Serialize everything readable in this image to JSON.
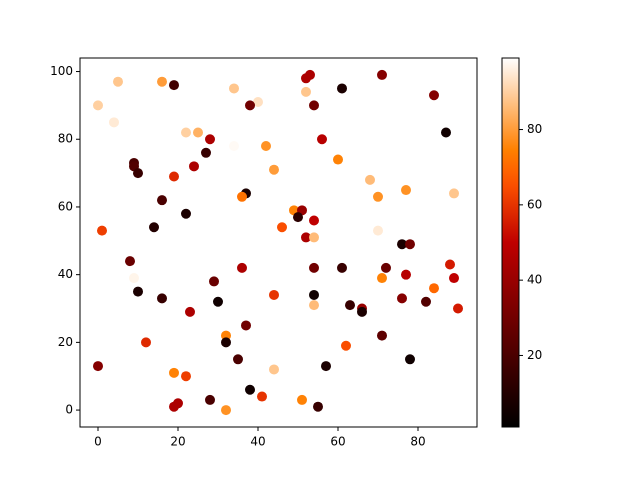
{
  "chart_data": {
    "type": "scatter",
    "colormap": "gist_heat",
    "x": [
      0,
      0,
      4,
      5,
      1,
      16,
      19,
      22,
      25,
      34,
      40,
      38,
      52,
      53,
      52,
      54,
      61,
      71,
      84,
      87,
      28,
      27,
      24,
      19,
      9,
      9,
      10,
      16,
      14,
      22,
      42,
      34,
      44,
      37,
      36,
      56,
      60,
      68,
      70,
      77,
      89,
      49,
      51,
      50,
      54,
      46,
      52,
      54,
      70,
      76,
      78,
      8,
      9,
      10,
      16,
      36,
      29,
      30,
      44,
      54,
      54,
      54,
      61,
      63,
      66,
      66,
      72,
      77,
      76,
      82,
      88,
      89,
      90,
      84,
      71,
      23,
      37,
      32,
      32,
      35,
      12,
      19,
      22,
      44,
      57,
      62,
      71,
      78,
      38,
      41,
      20,
      19,
      28,
      32,
      51,
      55
    ],
    "y": [
      13,
      90,
      85,
      97,
      53,
      97,
      96,
      82,
      82,
      95,
      91,
      90,
      98,
      99,
      94,
      90,
      95,
      99,
      93,
      82,
      80,
      76,
      72,
      69,
      73,
      72,
      70,
      62,
      54,
      58,
      78,
      78,
      71,
      64,
      63,
      80,
      74,
      68,
      63,
      65,
      64,
      59,
      59,
      57,
      56,
      54,
      51,
      51,
      53,
      49,
      49,
      44,
      39,
      35,
      33,
      42,
      38,
      32,
      34,
      42,
      34,
      31,
      42,
      31,
      30,
      29,
      42,
      40,
      33,
      32,
      43,
      39,
      30,
      36,
      39,
      29,
      25,
      22,
      20,
      15,
      20,
      11,
      10,
      12,
      13,
      19,
      22,
      15,
      6,
      4,
      2,
      1,
      3,
      0,
      3,
      1
    ],
    "values": [
      35,
      90,
      95,
      88,
      62,
      80,
      18,
      90,
      84,
      88,
      93,
      30,
      45,
      45,
      88,
      30,
      8,
      35,
      35,
      5,
      45,
      15,
      45,
      58,
      20,
      22,
      15,
      20,
      10,
      8,
      78,
      98,
      80,
      8,
      72,
      48,
      75,
      86,
      78,
      78,
      88,
      75,
      40,
      12,
      50,
      65,
      45,
      86,
      95,
      8,
      30,
      28,
      97,
      8,
      15,
      45,
      28,
      5,
      60,
      30,
      5,
      86,
      15,
      15,
      40,
      8,
      28,
      48,
      35,
      22,
      55,
      50,
      55,
      70,
      75,
      45,
      30,
      75,
      8,
      20,
      58,
      75,
      62,
      88,
      8,
      65,
      25,
      5,
      5,
      60,
      45,
      45,
      20,
      78,
      75,
      15
    ],
    "xlim": [
      -4.5,
      94.75
    ],
    "ylim": [
      -5,
      104
    ],
    "xticks": [
      0,
      20,
      40,
      60,
      80
    ],
    "yticks": [
      0,
      20,
      40,
      60,
      80,
      100
    ],
    "clim": [
      1,
      99
    ],
    "colorbar_ticks": [
      20,
      40,
      60,
      80
    ]
  }
}
